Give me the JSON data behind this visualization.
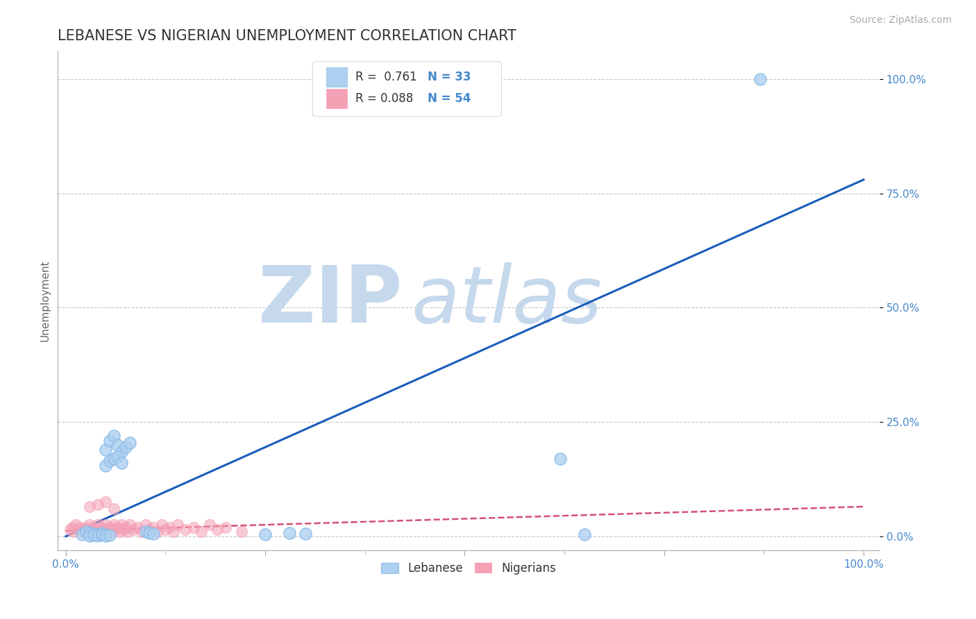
{
  "title": "LEBANESE VS NIGERIAN UNEMPLOYMENT CORRELATION CHART",
  "source": "Source: ZipAtlas.com",
  "ylabel_label": "Unemployment",
  "y_tick_values": [
    0.0,
    0.25,
    0.5,
    0.75,
    1.0
  ],
  "x_tick_values": [
    0.0,
    0.25,
    0.5,
    0.75,
    1.0
  ],
  "x_tick_labels": [
    "0.0%",
    "",
    "",
    "",
    "100.0%"
  ],
  "xlim": [
    -0.01,
    1.02
  ],
  "ylim": [
    -0.03,
    1.06
  ],
  "legend_r1": "R =  0.761",
  "legend_n1": "N = 33",
  "legend_r2": "R = 0.088",
  "legend_n2": "N = 54",
  "scatter_blue_x": [
    0.02,
    0.025,
    0.03,
    0.035,
    0.04,
    0.045,
    0.05,
    0.055,
    0.06,
    0.065,
    0.07,
    0.075,
    0.08,
    0.05,
    0.055,
    0.06,
    0.065,
    0.07,
    0.1,
    0.105,
    0.11,
    0.25,
    0.28,
    0.3,
    0.62,
    0.65,
    0.87,
    0.03,
    0.035,
    0.04,
    0.045,
    0.05,
    0.055
  ],
  "scatter_blue_y": [
    0.005,
    0.01,
    0.008,
    0.006,
    0.004,
    0.007,
    0.19,
    0.21,
    0.22,
    0.2,
    0.185,
    0.195,
    0.205,
    0.155,
    0.165,
    0.17,
    0.175,
    0.16,
    0.01,
    0.008,
    0.006,
    0.005,
    0.007,
    0.006,
    0.17,
    0.005,
    1.0,
    0.002,
    0.003,
    0.002,
    0.004,
    0.001,
    0.003
  ],
  "scatter_pink_x": [
    0.005,
    0.008,
    0.01,
    0.012,
    0.015,
    0.018,
    0.02,
    0.022,
    0.025,
    0.028,
    0.03,
    0.032,
    0.035,
    0.038,
    0.04,
    0.042,
    0.045,
    0.048,
    0.05,
    0.052,
    0.055,
    0.058,
    0.06,
    0.062,
    0.065,
    0.068,
    0.07,
    0.072,
    0.075,
    0.078,
    0.08,
    0.085,
    0.09,
    0.095,
    0.1,
    0.105,
    0.11,
    0.115,
    0.12,
    0.125,
    0.13,
    0.135,
    0.14,
    0.15,
    0.16,
    0.17,
    0.18,
    0.19,
    0.2,
    0.22,
    0.03,
    0.04,
    0.05,
    0.06
  ],
  "scatter_pink_y": [
    0.015,
    0.02,
    0.01,
    0.025,
    0.015,
    0.02,
    0.01,
    0.015,
    0.02,
    0.01,
    0.025,
    0.015,
    0.02,
    0.01,
    0.025,
    0.015,
    0.02,
    0.01,
    0.025,
    0.015,
    0.02,
    0.01,
    0.025,
    0.015,
    0.02,
    0.01,
    0.025,
    0.015,
    0.02,
    0.01,
    0.025,
    0.015,
    0.02,
    0.01,
    0.025,
    0.015,
    0.02,
    0.01,
    0.025,
    0.015,
    0.02,
    0.01,
    0.025,
    0.015,
    0.02,
    0.01,
    0.025,
    0.015,
    0.02,
    0.01,
    0.065,
    0.07,
    0.075,
    0.06
  ],
  "blue_line_x": [
    0.0,
    1.0
  ],
  "blue_line_y": [
    0.0,
    0.78
  ],
  "pink_line_x": [
    0.0,
    1.0
  ],
  "pink_line_y": [
    0.012,
    0.065
  ],
  "scatter_blue_color": "#8bbce8",
  "scatter_blue_fill": "#aed0f0",
  "scatter_pink_color": "#f4a0b5",
  "blue_line_color": "#1a5cbb",
  "pink_line_color": "#d45070",
  "grid_color": "#c8c8c8",
  "background_color": "#ffffff",
  "watermark_zip": "ZIP",
  "watermark_atlas": "atlas",
  "watermark_color": "#c5d8ec",
  "title_color": "#333333",
  "axis_tick_color": "#4488cc",
  "source_color": "#aaaaaa",
  "legend_border_color": "#d8d8d8"
}
